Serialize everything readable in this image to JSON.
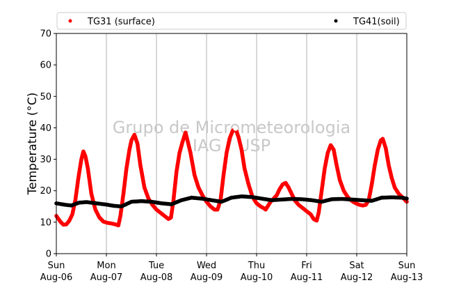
{
  "chart_data": {
    "type": "scatter",
    "ylabel": "Temperature (°C)",
    "ylim": [
      0,
      70
    ],
    "yticks": [
      0,
      10,
      20,
      30,
      40,
      50,
      60,
      70
    ],
    "xlim": [
      0,
      7
    ],
    "x_unit": "days",
    "grid": "vertical-only",
    "legend": "top, outside, two columns",
    "xticks": [
      {
        "day": "Sun",
        "date": "Aug-06"
      },
      {
        "day": "Mon",
        "date": "Aug-07"
      },
      {
        "day": "Tue",
        "date": "Aug-08"
      },
      {
        "day": "Wed",
        "date": "Aug-09"
      },
      {
        "day": "Thu",
        "date": "Aug-10"
      },
      {
        "day": "Fri",
        "date": "Aug-11"
      },
      {
        "day": "Sat",
        "date": "Aug-12"
      },
      {
        "day": "Sun",
        "date": "Aug-13"
      }
    ],
    "series": [
      {
        "name": "TG31 (surface)",
        "color": "#ff0000",
        "points": [
          [
            0.0,
            12.0
          ],
          [
            0.08,
            10.2
          ],
          [
            0.14,
            9.2
          ],
          [
            0.2,
            9.3
          ],
          [
            0.26,
            10.5
          ],
          [
            0.32,
            12.5
          ],
          [
            0.38,
            17.0
          ],
          [
            0.44,
            24.0
          ],
          [
            0.5,
            30.0
          ],
          [
            0.54,
            32.5
          ],
          [
            0.58,
            31.0
          ],
          [
            0.63,
            27.0
          ],
          [
            0.7,
            19.0
          ],
          [
            0.78,
            14.0
          ],
          [
            0.86,
            11.5
          ],
          [
            0.94,
            10.2
          ],
          [
            1.02,
            9.8
          ],
          [
            1.1,
            9.6
          ],
          [
            1.18,
            9.3
          ],
          [
            1.24,
            9.0
          ],
          [
            1.28,
            12.0
          ],
          [
            1.34,
            19.0
          ],
          [
            1.4,
            27.0
          ],
          [
            1.46,
            33.0
          ],
          [
            1.5,
            36.0
          ],
          [
            1.56,
            37.8
          ],
          [
            1.62,
            35.0
          ],
          [
            1.68,
            28.0
          ],
          [
            1.76,
            21.0
          ],
          [
            1.84,
            17.5
          ],
          [
            1.92,
            15.5
          ],
          [
            2.0,
            14.0
          ],
          [
            2.08,
            13.0
          ],
          [
            2.16,
            12.0
          ],
          [
            2.24,
            11.0
          ],
          [
            2.29,
            11.5
          ],
          [
            2.34,
            17.0
          ],
          [
            2.4,
            26.0
          ],
          [
            2.46,
            32.0
          ],
          [
            2.52,
            35.5
          ],
          [
            2.58,
            38.5
          ],
          [
            2.62,
            36.0
          ],
          [
            2.68,
            32.0
          ],
          [
            2.76,
            25.0
          ],
          [
            2.84,
            21.0
          ],
          [
            2.92,
            18.5
          ],
          [
            3.0,
            16.5
          ],
          [
            3.08,
            15.0
          ],
          [
            3.16,
            14.0
          ],
          [
            3.22,
            14.0
          ],
          [
            3.28,
            17.0
          ],
          [
            3.34,
            25.0
          ],
          [
            3.4,
            32.0
          ],
          [
            3.46,
            36.5
          ],
          [
            3.52,
            39.0
          ],
          [
            3.58,
            39.8
          ],
          [
            3.64,
            37.0
          ],
          [
            3.7,
            33.0
          ],
          [
            3.76,
            27.0
          ],
          [
            3.84,
            22.0
          ],
          [
            3.92,
            18.0
          ],
          [
            4.0,
            16.0
          ],
          [
            4.08,
            15.0
          ],
          [
            4.14,
            14.5
          ],
          [
            4.18,
            14.0
          ],
          [
            4.22,
            15.0
          ],
          [
            4.28,
            16.5
          ],
          [
            4.34,
            17.5
          ],
          [
            4.4,
            18.5
          ],
          [
            4.46,
            20.5
          ],
          [
            4.52,
            22.0
          ],
          [
            4.58,
            22.5
          ],
          [
            4.64,
            21.0
          ],
          [
            4.7,
            19.0
          ],
          [
            4.76,
            17.0
          ],
          [
            4.84,
            15.5
          ],
          [
            4.92,
            14.5
          ],
          [
            5.0,
            13.5
          ],
          [
            5.08,
            12.5
          ],
          [
            5.14,
            11.0
          ],
          [
            5.2,
            10.5
          ],
          [
            5.24,
            13.0
          ],
          [
            5.3,
            20.0
          ],
          [
            5.36,
            27.0
          ],
          [
            5.42,
            32.0
          ],
          [
            5.48,
            34.5
          ],
          [
            5.54,
            33.0
          ],
          [
            5.6,
            28.0
          ],
          [
            5.66,
            23.5
          ],
          [
            5.74,
            20.0
          ],
          [
            5.82,
            18.0
          ],
          [
            5.9,
            16.8
          ],
          [
            5.98,
            16.0
          ],
          [
            6.06,
            15.5
          ],
          [
            6.12,
            15.3
          ],
          [
            6.18,
            15.5
          ],
          [
            6.24,
            17.0
          ],
          [
            6.3,
            22.0
          ],
          [
            6.36,
            28.0
          ],
          [
            6.42,
            33.0
          ],
          [
            6.48,
            36.0
          ],
          [
            6.52,
            36.5
          ],
          [
            6.58,
            33.5
          ],
          [
            6.64,
            28.0
          ],
          [
            6.7,
            24.0
          ],
          [
            6.76,
            21.0
          ],
          [
            6.84,
            19.0
          ],
          [
            6.92,
            17.8
          ],
          [
            7.0,
            16.5
          ]
        ]
      },
      {
        "name": "TG41(soil)",
        "color": "#000000",
        "points": [
          [
            0.0,
            16.0
          ],
          [
            0.15,
            15.6
          ],
          [
            0.3,
            15.3
          ],
          [
            0.45,
            16.2
          ],
          [
            0.6,
            16.4
          ],
          [
            0.8,
            16.0
          ],
          [
            1.0,
            15.6
          ],
          [
            1.15,
            15.2
          ],
          [
            1.3,
            15.0
          ],
          [
            1.5,
            16.5
          ],
          [
            1.7,
            16.7
          ],
          [
            1.9,
            16.5
          ],
          [
            2.1,
            16.0
          ],
          [
            2.3,
            15.7
          ],
          [
            2.5,
            17.0
          ],
          [
            2.7,
            17.8
          ],
          [
            2.9,
            17.5
          ],
          [
            3.1,
            17.0
          ],
          [
            3.3,
            16.5
          ],
          [
            3.5,
            17.8
          ],
          [
            3.7,
            18.2
          ],
          [
            3.9,
            18.0
          ],
          [
            4.1,
            17.5
          ],
          [
            4.3,
            17.0
          ],
          [
            4.5,
            17.2
          ],
          [
            4.7,
            17.4
          ],
          [
            4.9,
            17.3
          ],
          [
            5.1,
            17.0
          ],
          [
            5.3,
            16.5
          ],
          [
            5.5,
            17.3
          ],
          [
            5.7,
            17.4
          ],
          [
            5.9,
            17.2
          ],
          [
            6.1,
            17.0
          ],
          [
            6.3,
            16.8
          ],
          [
            6.5,
            17.8
          ],
          [
            6.7,
            17.9
          ],
          [
            6.9,
            17.8
          ],
          [
            7.0,
            17.5
          ]
        ]
      }
    ],
    "highlight": {
      "x": 3.58,
      "y": 39.8
    }
  },
  "watermark": {
    "line1": "Grupo de Micrometeorologia",
    "line2": "IAG / USP"
  }
}
